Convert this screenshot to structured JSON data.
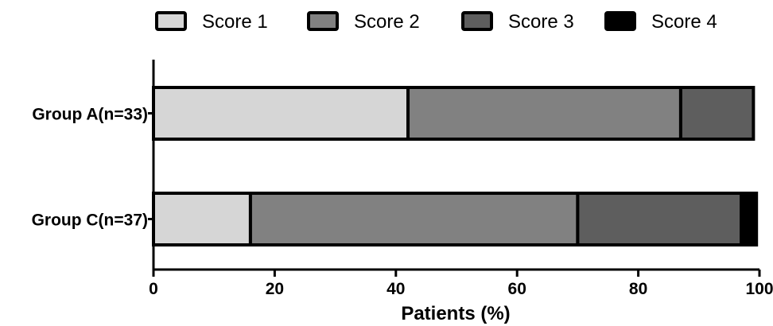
{
  "chart_data": {
    "type": "bar",
    "orientation": "horizontal",
    "stacked": true,
    "categories": [
      "Group A(n=33)",
      "Group C(n=37)"
    ],
    "series": [
      {
        "name": "Score 1",
        "color": "#d6d6d6",
        "values": [
          42,
          16
        ]
      },
      {
        "name": "Score 2",
        "color": "#818181",
        "values": [
          45,
          54
        ]
      },
      {
        "name": "Score 3",
        "color": "#5e5e5e",
        "values": [
          12,
          27
        ]
      },
      {
        "name": "Score 4",
        "color": "#000000",
        "values": [
          0,
          2.5
        ]
      }
    ],
    "xlabel": "Patients (%)",
    "ylabel": "",
    "xlim": [
      0,
      100
    ],
    "xticks": [
      "0",
      "20",
      "40",
      "60",
      "80",
      "100"
    ],
    "legend_position": "top",
    "grid": false
  }
}
